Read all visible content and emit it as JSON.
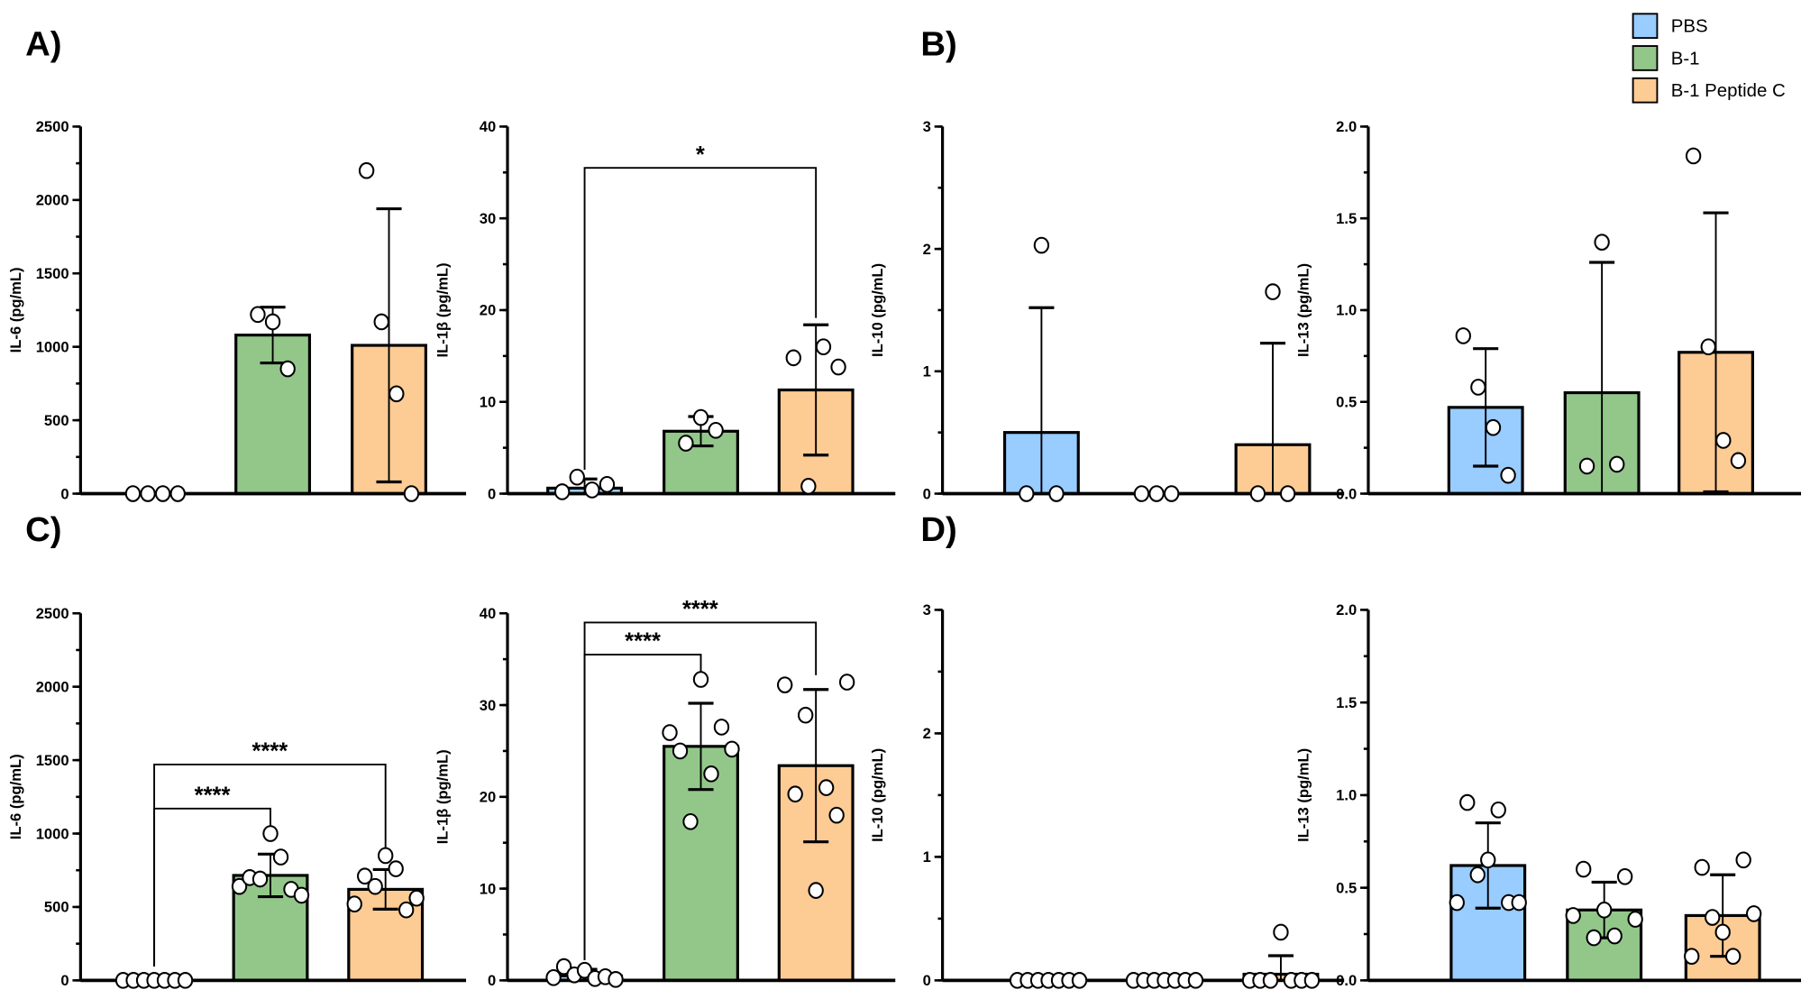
{
  "legend": [
    {
      "label": "PBS",
      "color": "#99CCFF"
    },
    {
      "label": "B-1",
      "color": "#93C78A"
    },
    {
      "label": "B-1 Peptide C",
      "color": "#FDCB94"
    }
  ],
  "panel_letters": [
    "A)",
    "B)",
    "C)",
    "D)"
  ],
  "chart_data": [
    {
      "type": "bar",
      "panel": "A",
      "ylabel": "IL-6 (pg/mL)",
      "ylim": [
        0,
        2500
      ],
      "yticks": [
        "0",
        "500",
        "1000",
        "1500",
        "2000",
        "2500"
      ],
      "minor_step": 250,
      "categories": [
        "PBS",
        "B-1",
        "B-1 Peptide C"
      ],
      "series": [
        {
          "name": "PBS",
          "mean": 0,
          "sd": 0,
          "points": [
            0,
            0,
            0,
            0
          ]
        },
        {
          "name": "B-1",
          "mean": 1080,
          "sd": 190,
          "points": [
            1220,
            1170,
            850
          ]
        },
        {
          "name": "B-1 Peptide C",
          "mean": 1010,
          "sd": 930,
          "points": [
            2200,
            1170,
            680,
            0
          ]
        }
      ],
      "significance": []
    },
    {
      "type": "bar",
      "panel": "A",
      "ylabel": "IL-1β (pg/mL)",
      "ylim": [
        0,
        40
      ],
      "yticks": [
        "0",
        "10",
        "20",
        "30",
        "40"
      ],
      "minor_step": 5,
      "categories": [
        "PBS",
        "B-1",
        "B-1 Peptide C"
      ],
      "series": [
        {
          "name": "PBS",
          "mean": 0.6,
          "sd": 1.0,
          "points": [
            0.2,
            1.8,
            0.4,
            1.0
          ]
        },
        {
          "name": "B-1",
          "mean": 6.8,
          "sd": 1.6,
          "points": [
            5.5,
            8.3,
            6.9
          ]
        },
        {
          "name": "B-1 Peptide C",
          "mean": 11.3,
          "sd": 7.1,
          "points": [
            14.8,
            0.8,
            16.0,
            13.8
          ]
        }
      ],
      "significance": [
        {
          "from": 0,
          "to": 2,
          "y": 35.5,
          "label": "*"
        }
      ]
    },
    {
      "type": "bar",
      "panel": "B",
      "ylabel": "IL-10 (pg/mL)",
      "ylim": [
        0,
        3
      ],
      "yticks": [
        "0",
        "1",
        "2",
        "3"
      ],
      "minor_step": 0.5,
      "categories": [
        "PBS",
        "B-1",
        "B-1 Peptide C"
      ],
      "series": [
        {
          "name": "PBS",
          "mean": 0.5,
          "sd": 1.02,
          "points": [
            0,
            2.03,
            0
          ]
        },
        {
          "name": "B-1",
          "mean": 0,
          "sd": 0,
          "points": [
            0,
            0,
            0
          ]
        },
        {
          "name": "B-1 Peptide C",
          "mean": 0.4,
          "sd": 0.83,
          "points": [
            0,
            1.65,
            0
          ]
        }
      ],
      "significance": []
    },
    {
      "type": "bar",
      "panel": "B",
      "ylabel": "IL-13 (pg/mL)",
      "ylim": [
        0,
        2
      ],
      "yticks": [
        "0.0",
        "0.5",
        "1.0",
        "1.5",
        "2.0"
      ],
      "minor_step": 0.25,
      "categories": [
        "PBS",
        "B-1",
        "B-1 Peptide C"
      ],
      "series": [
        {
          "name": "PBS",
          "mean": 0.47,
          "sd": 0.32,
          "points": [
            0.86,
            0.58,
            0.36,
            0.1
          ]
        },
        {
          "name": "B-1",
          "mean": 0.55,
          "sd": 0.71,
          "points": [
            0.15,
            1.37,
            0.16
          ]
        },
        {
          "name": "B-1 Peptide C",
          "mean": 0.77,
          "sd": 0.76,
          "points": [
            1.84,
            0.8,
            0.29,
            0.18
          ]
        }
      ],
      "significance": []
    },
    {
      "type": "bar",
      "panel": "C",
      "ylabel": "IL-6 (pg/mL)",
      "ylim": [
        0,
        2500
      ],
      "yticks": [
        "0",
        "500",
        "1000",
        "1500",
        "2000",
        "2500"
      ],
      "minor_step": 250,
      "categories": [
        "PBS",
        "B-1",
        "B-1 Peptide C"
      ],
      "series": [
        {
          "name": "PBS",
          "mean": 0,
          "sd": 0,
          "points": [
            0,
            0,
            0,
            0,
            0,
            0,
            0
          ]
        },
        {
          "name": "B-1",
          "mean": 715,
          "sd": 145,
          "points": [
            640,
            700,
            690,
            1000,
            840,
            620,
            580
          ]
        },
        {
          "name": "B-1 Peptide C",
          "mean": 620,
          "sd": 135,
          "points": [
            520,
            710,
            640,
            850,
            760,
            480,
            560
          ]
        }
      ],
      "significance": [
        {
          "from": 0,
          "to": 1,
          "y": 1170,
          "label": "****"
        },
        {
          "from": 0,
          "to": 2,
          "y": 1470,
          "label": "****"
        }
      ]
    },
    {
      "type": "bar",
      "panel": "C",
      "ylabel": "IL-1β (pg/mL)",
      "ylim": [
        0,
        40
      ],
      "yticks": [
        "0",
        "10",
        "20",
        "30",
        "40"
      ],
      "minor_step": 5,
      "categories": [
        "PBS",
        "B-1",
        "B-1 Peptide C"
      ],
      "series": [
        {
          "name": "PBS",
          "mean": 0.5,
          "sd": 0.7,
          "points": [
            0.3,
            1.5,
            0.6,
            1.1,
            0.2,
            0.4,
            0.1
          ]
        },
        {
          "name": "B-1",
          "mean": 25.5,
          "sd": 4.7,
          "points": [
            27.0,
            25.0,
            17.3,
            32.8,
            22.5,
            27.6,
            25.2
          ]
        },
        {
          "name": "B-1 Peptide C",
          "mean": 23.4,
          "sd": 8.3,
          "points": [
            32.2,
            20.3,
            28.9,
            9.8,
            21.0,
            18.0,
            32.5
          ]
        }
      ],
      "significance": [
        {
          "from": 0,
          "to": 1,
          "y": 35.5,
          "label": "****"
        },
        {
          "from": 0,
          "to": 2,
          "y": 39,
          "label": "****"
        }
      ]
    },
    {
      "type": "bar",
      "panel": "D",
      "ylabel": "IL-10 (pg/mL)",
      "ylim": [
        0,
        3
      ],
      "yticks": [
        "0",
        "1",
        "2",
        "3"
      ],
      "minor_step": 0.5,
      "categories": [
        "PBS",
        "B-1",
        "B-1 Peptide C"
      ],
      "series": [
        {
          "name": "PBS",
          "mean": 0,
          "sd": 0,
          "points": [
            0,
            0,
            0,
            0,
            0,
            0,
            0
          ]
        },
        {
          "name": "B-1",
          "mean": 0,
          "sd": 0,
          "points": [
            0,
            0,
            0,
            0,
            0,
            0,
            0
          ]
        },
        {
          "name": "B-1 Peptide C",
          "mean": 0.05,
          "sd": 0.15,
          "points": [
            0,
            0,
            0,
            0.39,
            0,
            0,
            0
          ]
        }
      ],
      "significance": []
    },
    {
      "type": "bar",
      "panel": "D",
      "ylabel": "IL-13 (pg/mL)",
      "ylim": [
        0,
        2
      ],
      "yticks": [
        "0.0",
        "0.5",
        "1.0",
        "1.5",
        "2.0"
      ],
      "minor_step": 0.25,
      "categories": [
        "PBS",
        "B-1",
        "B-1 Peptide C"
      ],
      "series": [
        {
          "name": "PBS",
          "mean": 0.62,
          "sd": 0.23,
          "points": [
            0.42,
            0.96,
            0.57,
            0.65,
            0.92,
            0.42,
            0.42
          ]
        },
        {
          "name": "B-1",
          "mean": 0.38,
          "sd": 0.15,
          "points": [
            0.35,
            0.6,
            0.23,
            0.38,
            0.24,
            0.56,
            0.33
          ]
        },
        {
          "name": "B-1 Peptide C",
          "mean": 0.35,
          "sd": 0.22,
          "points": [
            0.13,
            0.61,
            0.34,
            0.26,
            0.13,
            0.65,
            0.36
          ]
        }
      ],
      "significance": []
    }
  ]
}
